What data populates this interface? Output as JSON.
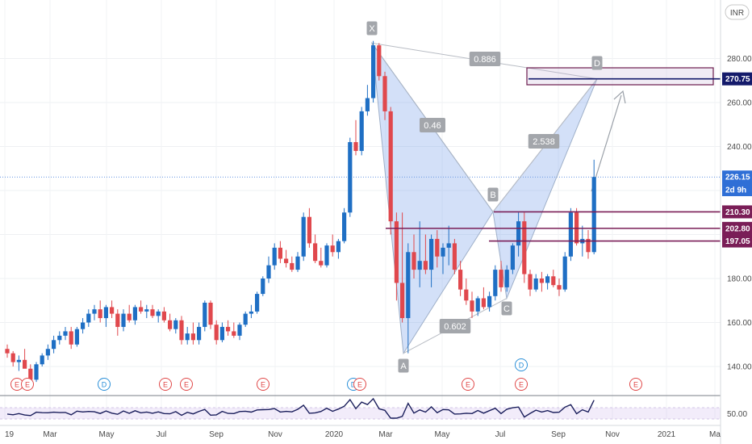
{
  "currency_button": "INR",
  "chart_data": {
    "type": "candlestick",
    "title": "",
    "xlabel": "",
    "ylabel": "",
    "ylim": [
      134,
      298
    ],
    "y_ticks": [
      "280.00",
      "260.00",
      "240.00",
      "220.00",
      "200.00",
      "180.00",
      "160.00",
      "140.00"
    ],
    "x_ticks": [
      "19",
      "Mar",
      "May",
      "Jul",
      "Sep",
      "Nov",
      "2020",
      "Mar",
      "May",
      "Jul",
      "Sep",
      "Nov",
      "2021",
      "Ma"
    ],
    "current_price": "226.15",
    "countdown": "2d 9h",
    "target_price": "270.75",
    "levels": [
      {
        "label": "210.30",
        "value": 210.3
      },
      {
        "label": "202.80",
        "value": 202.8
      },
      {
        "label": "197.05",
        "value": 197.05
      }
    ],
    "pattern_points": [
      {
        "label": "X",
        "value": 287
      },
      {
        "label": "A",
        "value": 146
      },
      {
        "label": "B",
        "value": 210.3
      },
      {
        "label": "C",
        "value": 171
      },
      {
        "label": "D",
        "value": 270.75
      }
    ],
    "ratios": [
      "0.886",
      "0.46",
      "2.538",
      "0.602"
    ],
    "rsi_value": "50.00",
    "events": [
      "E",
      "E",
      "D",
      "E",
      "E",
      "E",
      "D",
      "E",
      "E",
      "E",
      "E"
    ],
    "candles": [
      {
        "o": 148,
        "h": 150,
        "l": 144,
        "c": 146
      },
      {
        "o": 146,
        "h": 147,
        "l": 140,
        "c": 142
      },
      {
        "o": 142,
        "h": 145,
        "l": 138,
        "c": 143
      },
      {
        "o": 143,
        "h": 148,
        "l": 140,
        "c": 139
      },
      {
        "o": 139,
        "h": 141,
        "l": 132,
        "c": 134
      },
      {
        "o": 134,
        "h": 142,
        "l": 133,
        "c": 141
      },
      {
        "o": 141,
        "h": 146,
        "l": 140,
        "c": 145
      },
      {
        "o": 145,
        "h": 150,
        "l": 143,
        "c": 148
      },
      {
        "o": 148,
        "h": 154,
        "l": 146,
        "c": 152
      },
      {
        "o": 152,
        "h": 156,
        "l": 150,
        "c": 154
      },
      {
        "o": 154,
        "h": 158,
        "l": 152,
        "c": 156
      },
      {
        "o": 156,
        "h": 158,
        "l": 148,
        "c": 150
      },
      {
        "o": 150,
        "h": 158,
        "l": 149,
        "c": 157
      },
      {
        "o": 157,
        "h": 162,
        "l": 155,
        "c": 160
      },
      {
        "o": 160,
        "h": 166,
        "l": 158,
        "c": 164
      },
      {
        "o": 164,
        "h": 168,
        "l": 161,
        "c": 166
      },
      {
        "o": 166,
        "h": 170,
        "l": 160,
        "c": 162
      },
      {
        "o": 162,
        "h": 168,
        "l": 158,
        "c": 167
      },
      {
        "o": 167,
        "h": 170,
        "l": 162,
        "c": 164
      },
      {
        "o": 164,
        "h": 166,
        "l": 154,
        "c": 158
      },
      {
        "o": 158,
        "h": 166,
        "l": 156,
        "c": 164
      },
      {
        "o": 164,
        "h": 168,
        "l": 160,
        "c": 161
      },
      {
        "o": 161,
        "h": 168,
        "l": 159,
        "c": 167
      },
      {
        "o": 167,
        "h": 170,
        "l": 164,
        "c": 165
      },
      {
        "o": 165,
        "h": 168,
        "l": 162,
        "c": 166
      },
      {
        "o": 166,
        "h": 168,
        "l": 162,
        "c": 163
      },
      {
        "o": 163,
        "h": 166,
        "l": 160,
        "c": 165
      },
      {
        "o": 165,
        "h": 167,
        "l": 160,
        "c": 161
      },
      {
        "o": 161,
        "h": 164,
        "l": 156,
        "c": 157
      },
      {
        "o": 157,
        "h": 162,
        "l": 155,
        "c": 161
      },
      {
        "o": 161,
        "h": 163,
        "l": 150,
        "c": 152
      },
      {
        "o": 152,
        "h": 158,
        "l": 150,
        "c": 155
      },
      {
        "o": 155,
        "h": 160,
        "l": 150,
        "c": 152
      },
      {
        "o": 152,
        "h": 160,
        "l": 150,
        "c": 158
      },
      {
        "o": 158,
        "h": 170,
        "l": 156,
        "c": 169
      },
      {
        "o": 169,
        "h": 170,
        "l": 157,
        "c": 159
      },
      {
        "o": 159,
        "h": 161,
        "l": 150,
        "c": 152
      },
      {
        "o": 152,
        "h": 160,
        "l": 151,
        "c": 158
      },
      {
        "o": 158,
        "h": 161,
        "l": 154,
        "c": 156
      },
      {
        "o": 156,
        "h": 160,
        "l": 153,
        "c": 154
      },
      {
        "o": 154,
        "h": 160,
        "l": 152,
        "c": 159
      },
      {
        "o": 159,
        "h": 165,
        "l": 158,
        "c": 164
      },
      {
        "o": 164,
        "h": 168,
        "l": 162,
        "c": 165
      },
      {
        "o": 165,
        "h": 174,
        "l": 164,
        "c": 173
      },
      {
        "o": 173,
        "h": 181,
        "l": 172,
        "c": 180
      },
      {
        "o": 180,
        "h": 190,
        "l": 178,
        "c": 186
      },
      {
        "o": 186,
        "h": 196,
        "l": 184,
        "c": 194
      },
      {
        "o": 194,
        "h": 197,
        "l": 187,
        "c": 189
      },
      {
        "o": 189,
        "h": 193,
        "l": 185,
        "c": 187
      },
      {
        "o": 187,
        "h": 190,
        "l": 183,
        "c": 184
      },
      {
        "o": 184,
        "h": 192,
        "l": 183,
        "c": 190
      },
      {
        "o": 190,
        "h": 210,
        "l": 188,
        "c": 208
      },
      {
        "o": 208,
        "h": 212,
        "l": 194,
        "c": 196
      },
      {
        "o": 196,
        "h": 200,
        "l": 187,
        "c": 188
      },
      {
        "o": 188,
        "h": 194,
        "l": 185,
        "c": 186
      },
      {
        "o": 186,
        "h": 196,
        "l": 185,
        "c": 195
      },
      {
        "o": 195,
        "h": 200,
        "l": 190,
        "c": 192
      },
      {
        "o": 192,
        "h": 198,
        "l": 189,
        "c": 197
      },
      {
        "o": 197,
        "h": 212,
        "l": 196,
        "c": 210
      },
      {
        "o": 210,
        "h": 244,
        "l": 208,
        "c": 242
      },
      {
        "o": 242,
        "h": 252,
        "l": 236,
        "c": 238
      },
      {
        "o": 238,
        "h": 258,
        "l": 236,
        "c": 256
      },
      {
        "o": 256,
        "h": 268,
        "l": 254,
        "c": 262
      },
      {
        "o": 262,
        "h": 288,
        "l": 260,
        "c": 286
      },
      {
        "o": 286,
        "h": 287,
        "l": 270,
        "c": 272
      },
      {
        "o": 272,
        "h": 274,
        "l": 252,
        "c": 256
      },
      {
        "o": 256,
        "h": 258,
        "l": 200,
        "c": 206
      },
      {
        "o": 206,
        "h": 210,
        "l": 170,
        "c": 178
      },
      {
        "o": 178,
        "h": 210,
        "l": 160,
        "c": 162
      },
      {
        "o": 162,
        "h": 196,
        "l": 146,
        "c": 192
      },
      {
        "o": 192,
        "h": 200,
        "l": 180,
        "c": 184
      },
      {
        "o": 184,
        "h": 206,
        "l": 176,
        "c": 188
      },
      {
        "o": 188,
        "h": 200,
        "l": 182,
        "c": 184
      },
      {
        "o": 184,
        "h": 200,
        "l": 176,
        "c": 198
      },
      {
        "o": 198,
        "h": 202,
        "l": 185,
        "c": 190
      },
      {
        "o": 190,
        "h": 196,
        "l": 182,
        "c": 194
      },
      {
        "o": 194,
        "h": 204,
        "l": 186,
        "c": 196
      },
      {
        "o": 196,
        "h": 198,
        "l": 182,
        "c": 184
      },
      {
        "o": 184,
        "h": 188,
        "l": 172,
        "c": 175
      },
      {
        "o": 175,
        "h": 180,
        "l": 168,
        "c": 170
      },
      {
        "o": 170,
        "h": 174,
        "l": 162,
        "c": 165
      },
      {
        "o": 165,
        "h": 172,
        "l": 163,
        "c": 171
      },
      {
        "o": 171,
        "h": 176,
        "l": 166,
        "c": 167
      },
      {
        "o": 167,
        "h": 174,
        "l": 165,
        "c": 172
      },
      {
        "o": 172,
        "h": 186,
        "l": 170,
        "c": 184
      },
      {
        "o": 184,
        "h": 188,
        "l": 174,
        "c": 176
      },
      {
        "o": 176,
        "h": 186,
        "l": 174,
        "c": 184
      },
      {
        "o": 184,
        "h": 196,
        "l": 182,
        "c": 195
      },
      {
        "o": 195,
        "h": 210,
        "l": 190,
        "c": 206
      },
      {
        "o": 206,
        "h": 210,
        "l": 178,
        "c": 182
      },
      {
        "o": 182,
        "h": 184,
        "l": 172,
        "c": 175
      },
      {
        "o": 175,
        "h": 182,
        "l": 174,
        "c": 180
      },
      {
        "o": 180,
        "h": 183,
        "l": 174,
        "c": 178
      },
      {
        "o": 178,
        "h": 182,
        "l": 175,
        "c": 181
      },
      {
        "o": 181,
        "h": 184,
        "l": 176,
        "c": 177
      },
      {
        "o": 177,
        "h": 180,
        "l": 172,
        "c": 175
      },
      {
        "o": 175,
        "h": 192,
        "l": 174,
        "c": 190
      },
      {
        "o": 190,
        "h": 212,
        "l": 188,
        "c": 210
      },
      {
        "o": 210,
        "h": 212,
        "l": 195,
        "c": 196
      },
      {
        "o": 196,
        "h": 204,
        "l": 190,
        "c": 198
      },
      {
        "o": 198,
        "h": 202,
        "l": 189,
        "c": 192
      },
      {
        "o": 192,
        "h": 234,
        "l": 191,
        "c": 226.15
      }
    ]
  }
}
